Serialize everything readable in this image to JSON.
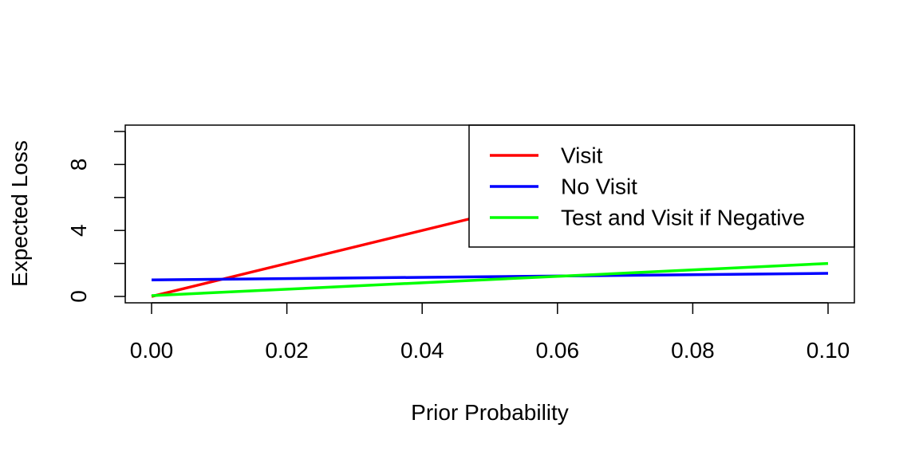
{
  "chart_data": {
    "type": "line",
    "title": "",
    "xlabel": "Prior Probability",
    "ylabel": "Expected Loss",
    "xlim": [
      0.0,
      0.1
    ],
    "ylim": [
      0,
      10
    ],
    "x_ticks": [
      0.0,
      0.02,
      0.04,
      0.06,
      0.08,
      0.1
    ],
    "x_tick_labels": [
      "0.00",
      "0.02",
      "0.04",
      "0.06",
      "0.08",
      "0.10"
    ],
    "y_ticks": [
      0,
      2,
      4,
      6,
      8,
      10
    ],
    "y_tick_labels": [
      "0",
      "",
      "4",
      "",
      "8",
      ""
    ],
    "grid": false,
    "legend_position": "top-right",
    "series": [
      {
        "name": "Visit",
        "color": "#ff0000",
        "x": [
          0.0,
          0.1
        ],
        "y": [
          0.0,
          10.0
        ]
      },
      {
        "name": "No Visit",
        "color": "#0000ff",
        "x": [
          0.0,
          0.1
        ],
        "y": [
          1.0,
          1.4
        ]
      },
      {
        "name": "Test and Visit if Negative",
        "color": "#00ff00",
        "x": [
          0.0,
          0.1
        ],
        "y": [
          0.05,
          2.0
        ]
      }
    ]
  }
}
